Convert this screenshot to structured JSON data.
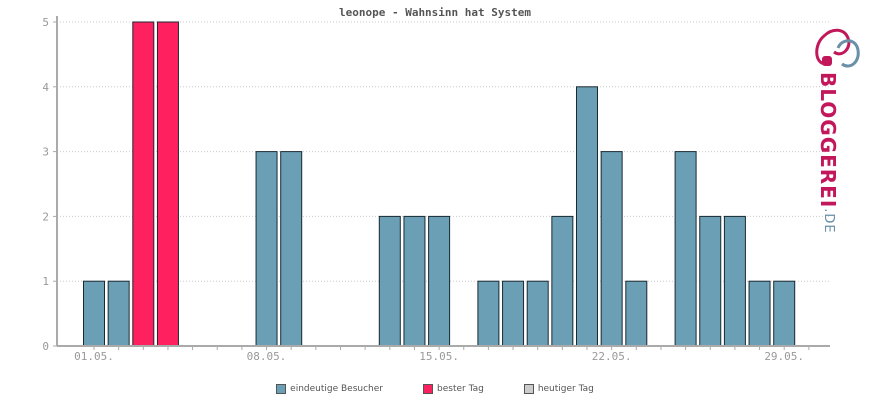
{
  "chart_data": {
    "type": "bar",
    "title": "leonope - Wahnsinn hat System",
    "categories": [
      "01.05.",
      "02.05.",
      "03.05.",
      "04.05.",
      "05.05.",
      "06.05.",
      "07.05.",
      "08.05.",
      "09.05.",
      "10.05.",
      "11.05.",
      "12.05.",
      "13.05.",
      "14.05.",
      "15.05.",
      "16.05.",
      "17.05.",
      "18.05.",
      "19.05.",
      "20.05.",
      "21.05.",
      "22.05.",
      "23.05.",
      "24.05.",
      "25.05.",
      "26.05.",
      "27.05.",
      "28.05.",
      "29.05.",
      "30.05."
    ],
    "x_tick_labels": [
      "01.05.",
      "08.05.",
      "15.05.",
      "22.05.",
      "29.05."
    ],
    "y_ticks": [
      0,
      1,
      2,
      3,
      4,
      5
    ],
    "ylim": [
      0,
      5
    ],
    "grid": true,
    "legend_position": "bottom",
    "series": [
      {
        "name": "eindeutige Besucher",
        "color": "#6a9fb5",
        "values": [
          1,
          1,
          5,
          5,
          0,
          0,
          0,
          3,
          3,
          0,
          0,
          0,
          2,
          2,
          2,
          0,
          1,
          1,
          1,
          2,
          4,
          3,
          1,
          0,
          3,
          2,
          2,
          1,
          1,
          0
        ]
      }
    ],
    "best_days": [
      2,
      3
    ],
    "best_color": "#ff2060",
    "today_color": "#cccccc",
    "legend": [
      {
        "label": "eindeutige Besucher",
        "color": "#6a9fb5"
      },
      {
        "label": "bester Tag",
        "color": "#ff2060"
      },
      {
        "label": "heutiger Tag",
        "color": "#cccccc"
      }
    ]
  },
  "branding": {
    "logo_icon": "bloggerei-logo-icon",
    "name": "BLOGGEREI",
    "suffix": ".DE"
  }
}
